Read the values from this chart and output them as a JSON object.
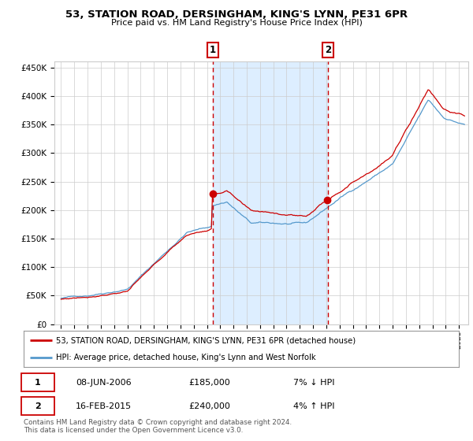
{
  "title": "53, STATION ROAD, DERSINGHAM, KING'S LYNN, PE31 6PR",
  "subtitle": "Price paid vs. HM Land Registry's House Price Index (HPI)",
  "purchase1_date": "08-JUN-2006",
  "purchase1_price": 185000,
  "purchase1_pct": "7% ↓ HPI",
  "purchase1_year": 2006.44,
  "purchase2_date": "16-FEB-2015",
  "purchase2_price": 240000,
  "purchase2_pct": "4% ↑ HPI",
  "purchase2_year": 2015.12,
  "legend_property": "53, STATION ROAD, DERSINGHAM, KING'S LYNN, PE31 6PR (detached house)",
  "legend_hpi": "HPI: Average price, detached house, King's Lynn and West Norfolk",
  "footer": "Contains HM Land Registry data © Crown copyright and database right 2024.\nThis data is licensed under the Open Government Licence v3.0.",
  "red_color": "#cc0000",
  "blue_color": "#5599cc",
  "shade_color": "#ddeeff",
  "grid_color": "#cccccc",
  "bg_color": "#ffffff",
  "ylim": [
    0,
    460000
  ],
  "yticks": [
    0,
    50000,
    100000,
    150000,
    200000,
    250000,
    300000,
    350000,
    400000,
    450000
  ]
}
